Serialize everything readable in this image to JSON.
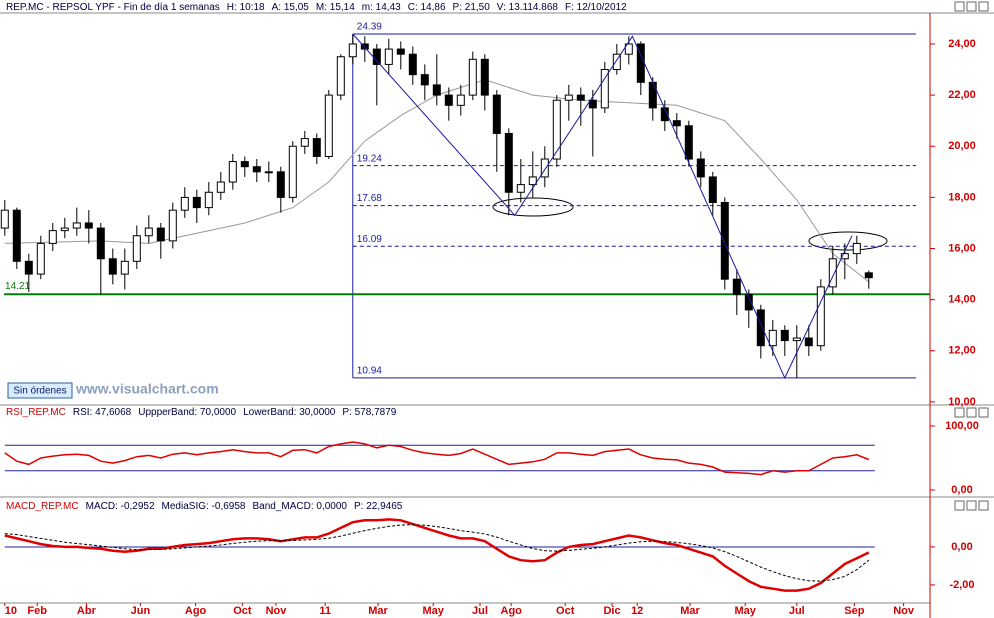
{
  "button": "Sin órdenes",
  "watermark": "www.visualchart.com",
  "chart_data": [
    {
      "type": "candlestick",
      "header": [
        "REP.MC - REPSOL YPF - Fin de día 1 semanas",
        "H: 10:18",
        "A: 15,05",
        "M: 15,14",
        "m: 14,43",
        "C: 14,86",
        "P: 21,50",
        "V: 13.114.868",
        "F: 12/10/2012"
      ],
      "up_color": "#ffffff",
      "down_color": "#000000",
      "open": [
        16.8,
        17.5,
        15.5,
        15.0,
        16.2,
        16.7,
        16.8,
        17.0,
        16.8,
        15.6,
        15.0,
        15.5,
        16.5,
        16.8,
        16.3,
        17.5,
        18.0,
        17.6,
        18.2,
        18.6,
        19.4,
        19.2,
        19.0,
        19.0,
        18.0,
        20.0,
        20.3,
        19.6,
        22.0,
        23.5,
        24.0,
        23.8,
        23.2,
        23.8,
        23.6,
        22.8,
        22.4,
        22.0,
        21.6,
        22.0,
        23.4,
        22.0,
        20.5,
        18.2,
        18.5,
        18.8,
        19.5,
        21.8,
        22.0,
        21.8,
        21.5,
        23.0,
        23.6,
        24.0,
        22.5,
        21.5,
        21.0,
        20.8,
        19.5,
        18.8,
        17.8,
        14.8,
        14.2,
        13.6,
        12.2,
        12.8,
        12.4,
        12.5,
        12.2,
        14.5,
        15.6,
        15.8,
        15.05
      ],
      "high": [
        17.9,
        17.6,
        15.8,
        16.5,
        17.0,
        17.2,
        17.6,
        17.5,
        17.0,
        16.0,
        16.0,
        16.9,
        17.3,
        17.0,
        17.8,
        18.4,
        18.3,
        18.6,
        19.0,
        19.7,
        19.6,
        19.5,
        19.4,
        19.2,
        20.2,
        20.6,
        20.5,
        22.2,
        23.6,
        24.39,
        24.3,
        24.0,
        24.2,
        24.1,
        23.9,
        23.2,
        23.6,
        22.3,
        22.4,
        23.7,
        23.6,
        22.2,
        20.7,
        19.5,
        19.8,
        20.0,
        22.0,
        22.4,
        22.3,
        22.2,
        23.3,
        24.0,
        24.3,
        24.1,
        22.7,
        21.8,
        21.3,
        21.0,
        19.8,
        19.0,
        18.0,
        15.2,
        14.4,
        13.8,
        13.2,
        13.0,
        13.0,
        13.0,
        14.8,
        16.1,
        16.2,
        16.5,
        15.14
      ],
      "low": [
        16.5,
        15.2,
        14.3,
        14.8,
        15.9,
        16.4,
        16.5,
        16.2,
        14.2,
        14.6,
        14.4,
        15.2,
        16.2,
        15.6,
        16.0,
        17.2,
        17.0,
        17.3,
        17.9,
        18.3,
        18.8,
        18.6,
        18.6,
        17.4,
        17.8,
        19.7,
        19.3,
        19.5,
        21.8,
        23.2,
        23.3,
        21.6,
        22.8,
        23.0,
        22.4,
        21.8,
        21.6,
        21.0,
        21.2,
        21.8,
        21.4,
        19.0,
        17.3,
        17.8,
        18.0,
        18.4,
        19.2,
        21.0,
        20.8,
        19.6,
        21.3,
        22.8,
        23.2,
        22.0,
        21.0,
        20.6,
        20.3,
        19.2,
        18.4,
        17.3,
        14.4,
        13.4,
        12.9,
        11.7,
        11.8,
        11.8,
        10.94,
        11.8,
        12.0,
        14.2,
        14.8,
        15.4,
        14.43
      ],
      "close": [
        17.5,
        15.5,
        15.0,
        16.2,
        16.7,
        16.8,
        17.0,
        16.8,
        15.6,
        15.0,
        15.5,
        16.5,
        16.8,
        16.3,
        17.5,
        18.0,
        17.6,
        18.2,
        18.6,
        19.4,
        19.2,
        19.0,
        19.0,
        18.0,
        20.0,
        20.3,
        19.6,
        22.0,
        23.5,
        24.0,
        23.8,
        23.2,
        23.8,
        23.6,
        22.8,
        22.4,
        22.0,
        21.6,
        22.0,
        23.4,
        22.0,
        20.5,
        18.2,
        18.5,
        18.8,
        19.5,
        21.8,
        22.0,
        21.8,
        21.5,
        23.0,
        23.6,
        24.0,
        22.5,
        21.5,
        21.0,
        20.8,
        19.5,
        18.8,
        17.8,
        14.8,
        14.2,
        13.6,
        12.2,
        12.8,
        12.4,
        12.5,
        12.2,
        14.5,
        15.6,
        15.8,
        16.2,
        14.86
      ],
      "ma": {
        "color": "#999999",
        "x": [
          0,
          8,
          12,
          16,
          20,
          24,
          27,
          30,
          33,
          36,
          40,
          44,
          48,
          52,
          56,
          60,
          63,
          66,
          69,
          72
        ],
        "values": [
          16.2,
          16.3,
          16.2,
          16.6,
          17.0,
          17.6,
          18.6,
          20.2,
          21.2,
          22.0,
          22.6,
          22.0,
          21.8,
          21.7,
          21.6,
          21.0,
          19.5,
          17.9,
          15.8,
          14.7
        ]
      },
      "zigzag": {
        "color": "#1a1aa0",
        "x": [
          29,
          42.5,
          52.3,
          65,
          70.6
        ],
        "values": [
          24.39,
          17.3,
          24.3,
          10.94,
          16.5
        ]
      },
      "levels": [
        24.39,
        19.24,
        17.68,
        16.09,
        10.94
      ],
      "level_color": "#1a1aa0",
      "support": 14.21,
      "support_color": "#008000",
      "xlim": [
        -0.4,
        77.1
      ],
      "ylim": [
        9.92,
        25.25
      ],
      "yticks": [
        {
          "value": 24,
          "label": "24,00"
        },
        {
          "value": 22,
          "label": "22,00"
        },
        {
          "value": 20,
          "label": "20,00"
        },
        {
          "value": 18,
          "label": "18,00"
        },
        {
          "value": 16,
          "label": "16,00"
        },
        {
          "value": 14,
          "label": "14,00"
        },
        {
          "value": 12,
          "label": "12,00"
        },
        {
          "value": 10,
          "label": "10,00"
        }
      ]
    },
    {
      "type": "line",
      "header": [
        "RSI_REP.MC",
        "RSI: 47,6068",
        "UppperBand: 70,0000",
        "LowerBand: 30,0000",
        "P: 578,7879"
      ],
      "color": "#e00000",
      "band_color": "#2020a0",
      "bands": [
        70,
        30
      ],
      "values": [
        58,
        45,
        40,
        50,
        53,
        55,
        56,
        54,
        45,
        42,
        46,
        52,
        54,
        50,
        56,
        58,
        55,
        58,
        60,
        63,
        60,
        58,
        58,
        52,
        62,
        63,
        58,
        68,
        72,
        75,
        72,
        66,
        70,
        68,
        62,
        58,
        56,
        54,
        57,
        64,
        56,
        48,
        40,
        42,
        44,
        48,
        58,
        58,
        56,
        54,
        60,
        62,
        64,
        55,
        50,
        48,
        47,
        42,
        40,
        36,
        28,
        27,
        26,
        24,
        30,
        28,
        30,
        30,
        40,
        50,
        52,
        55,
        47.6068
      ],
      "xlim": [
        -0.4,
        77.1
      ],
      "ylim": [
        -7.8,
        129.7
      ],
      "yticks": [
        {
          "value": 100,
          "label": "100,00"
        },
        {
          "value": 0,
          "label": "0,00"
        }
      ]
    },
    {
      "type": "line",
      "header": [
        "MACD_REP.MC",
        "MACD: -0,2952",
        "MediaSIG: -0,6958",
        "Band_MACD: 0,0000",
        "P: 22,9465"
      ],
      "band_color": "#2020a0",
      "bands": [
        0
      ],
      "series": [
        {
          "color": "#e00000",
          "dashed": false,
          "values": [
            0.6,
            0.45,
            0.3,
            0.15,
            0.05,
            0.0,
            0.0,
            -0.05,
            -0.1,
            -0.2,
            -0.25,
            -0.2,
            -0.1,
            -0.1,
            0.0,
            0.1,
            0.15,
            0.2,
            0.3,
            0.4,
            0.45,
            0.45,
            0.4,
            0.3,
            0.4,
            0.5,
            0.5,
            0.7,
            1.0,
            1.3,
            1.4,
            1.4,
            1.45,
            1.4,
            1.2,
            1.0,
            0.8,
            0.6,
            0.45,
            0.45,
            0.3,
            -0.1,
            -0.5,
            -0.7,
            -0.75,
            -0.7,
            -0.3,
            0.0,
            0.1,
            0.15,
            0.3,
            0.45,
            0.6,
            0.5,
            0.35,
            0.2,
            0.1,
            -0.1,
            -0.3,
            -0.5,
            -1.0,
            -1.4,
            -1.8,
            -2.1,
            -2.2,
            -2.3,
            -2.3,
            -2.2,
            -1.9,
            -1.4,
            -0.9,
            -0.6,
            -0.2952
          ]
        },
        {
          "color": "#000000",
          "dashed": true,
          "values": [
            0.7,
            0.65,
            0.55,
            0.45,
            0.35,
            0.25,
            0.18,
            0.12,
            0.05,
            -0.02,
            -0.1,
            -0.14,
            -0.14,
            -0.13,
            -0.1,
            -0.05,
            0.0,
            0.05,
            0.1,
            0.18,
            0.25,
            0.3,
            0.33,
            0.33,
            0.34,
            0.37,
            0.4,
            0.46,
            0.57,
            0.72,
            0.86,
            0.98,
            1.08,
            1.15,
            1.17,
            1.14,
            1.07,
            0.97,
            0.86,
            0.78,
            0.68,
            0.52,
            0.3,
            0.1,
            -0.08,
            -0.2,
            -0.22,
            -0.18,
            -0.12,
            -0.07,
            0.0,
            0.1,
            0.2,
            0.27,
            0.3,
            0.28,
            0.24,
            0.17,
            0.07,
            -0.05,
            -0.25,
            -0.5,
            -0.78,
            -1.06,
            -1.3,
            -1.51,
            -1.67,
            -1.78,
            -1.8,
            -1.72,
            -1.55,
            -1.2,
            -0.6958
          ]
        }
      ],
      "xlim": [
        -0.4,
        77.1
      ],
      "ylim": [
        -2.95,
        2.47
      ],
      "yticks": [
        {
          "value": 0,
          "label": "0,00"
        },
        {
          "value": -2,
          "label": "-2,00"
        }
      ],
      "xticks": [
        {
          "value": 0,
          "label": "10"
        },
        {
          "value": 2.7,
          "label": "Feb"
        },
        {
          "value": 6.8,
          "label": "Abr"
        },
        {
          "value": 11.3,
          "label": "Jun"
        },
        {
          "value": 15.9,
          "label": "Ago"
        },
        {
          "value": 19.8,
          "label": "Oct"
        },
        {
          "value": 22.6,
          "label": "Nov"
        },
        {
          "value": 26.7,
          "label": "11"
        },
        {
          "value": 31.1,
          "label": "Mar"
        },
        {
          "value": 35.7,
          "label": "May"
        },
        {
          "value": 39.6,
          "label": "Jul"
        },
        {
          "value": 42.2,
          "label": "Ago"
        },
        {
          "value": 46.7,
          "label": "Oct"
        },
        {
          "value": 50.6,
          "label": "Dic"
        },
        {
          "value": 52.7,
          "label": "12"
        },
        {
          "value": 57.1,
          "label": "Mar"
        },
        {
          "value": 61.7,
          "label": "May"
        },
        {
          "value": 66,
          "label": "Jul"
        },
        {
          "value": 70.8,
          "label": "Sep"
        },
        {
          "value": 74.9,
          "label": "Nov"
        }
      ]
    }
  ]
}
